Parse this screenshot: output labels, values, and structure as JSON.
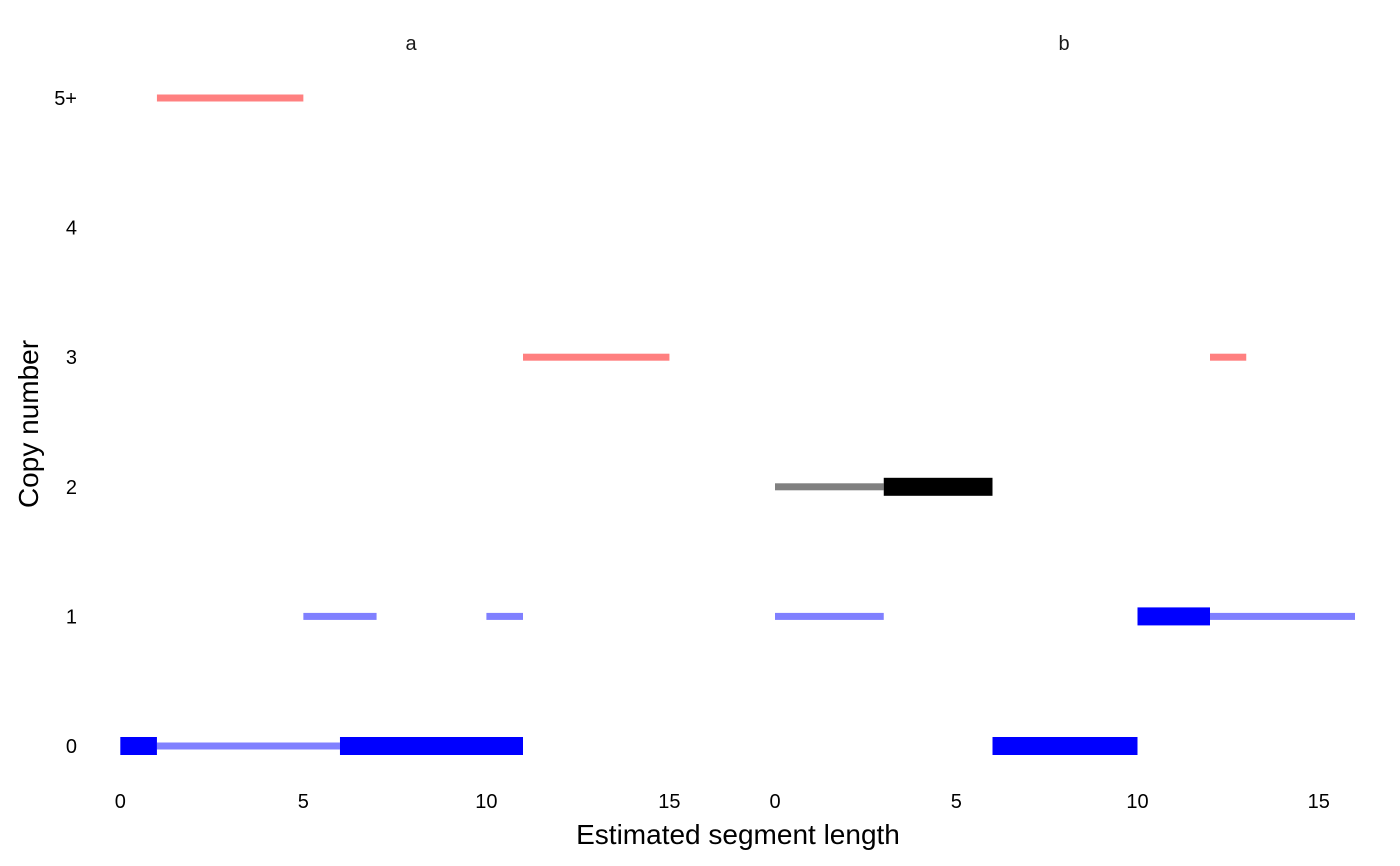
{
  "chart_data": {
    "type": "segment",
    "xlabel": "Estimated segment length",
    "ylabel": "Copy number",
    "y_levels": [
      "0",
      "1",
      "2",
      "3",
      "4",
      "5+"
    ],
    "panels": [
      {
        "title": "a",
        "xlim": [
          -0.2,
          16.6
        ],
        "x_ticks": [
          0,
          5,
          10,
          15
        ],
        "segments": [
          {
            "x0": 0,
            "x1": 1,
            "y": 0,
            "color": "#0000ff",
            "thick": true
          },
          {
            "x0": 1,
            "x1": 6,
            "y": 0,
            "color": "#8080ff",
            "thick": false
          },
          {
            "x0": 6,
            "x1": 11,
            "y": 0,
            "color": "#0000ff",
            "thick": true
          },
          {
            "x0": 5,
            "x1": 7,
            "y": 1,
            "color": "#8080ff",
            "thick": false
          },
          {
            "x0": 10,
            "x1": 11,
            "y": 1,
            "color": "#8080ff",
            "thick": false
          },
          {
            "x0": 11,
            "x1": 15,
            "y": 3,
            "color": "#ff8080",
            "thick": false
          },
          {
            "x0": 1,
            "x1": 5,
            "y": 5,
            "color": "#ff8080",
            "thick": false
          }
        ]
      },
      {
        "title": "b",
        "xlim": [
          0,
          16
        ],
        "x_ticks": [
          0,
          5,
          10,
          15
        ],
        "segments": [
          {
            "x0": 6,
            "x1": 10,
            "y": 0,
            "color": "#0000ff",
            "thick": true
          },
          {
            "x0": 0,
            "x1": 3,
            "y": 1,
            "color": "#8080ff",
            "thick": false
          },
          {
            "x0": 10,
            "x1": 12,
            "y": 1,
            "color": "#0000ff",
            "thick": true
          },
          {
            "x0": 12,
            "x1": 16,
            "y": 1,
            "color": "#8080ff",
            "thick": false
          },
          {
            "x0": 0,
            "x1": 3,
            "y": 2,
            "color": "#808080",
            "thick": false
          },
          {
            "x0": 3,
            "x1": 6,
            "y": 2,
            "color": "#000000",
            "thick": true
          },
          {
            "x0": 12,
            "x1": 13,
            "y": 3,
            "color": "#ff8080",
            "thick": false
          }
        ]
      }
    ]
  }
}
